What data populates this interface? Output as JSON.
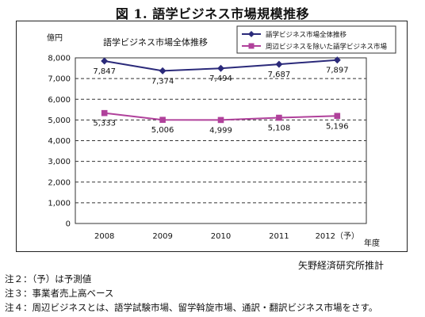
{
  "figure": {
    "title": "図 1. 語学ビジネス市場規模推移",
    "source": "矢野経済研究所推計",
    "notes": [
      "注２：（予）は予測値",
      "注３：事業者売上高ベース",
      "注４：周辺ビジネスとは、語学試験市場、留学斡旋市場、通訳・翻訳ビジネス市場をさす。"
    ]
  },
  "chart_data": {
    "type": "line",
    "title": "語学ビジネス市場全体推移",
    "ylabel": "億円",
    "xlabel": "年度",
    "categories": [
      "2008",
      "2009",
      "2010",
      "2011",
      "2012（予）"
    ],
    "ylim": [
      0,
      8000
    ],
    "yticks": [
      0,
      1000,
      2000,
      3000,
      4000,
      5000,
      6000,
      7000,
      8000
    ],
    "ytick_labels": [
      "0",
      "1,000",
      "2,000",
      "3,000",
      "4,000",
      "5,000",
      "6,000",
      "7,000",
      "8,000"
    ],
    "grid": "horizontal dashed",
    "legend_position": "top-right",
    "series": [
      {
        "name": "語学ビジネス市場全体推移",
        "values": [
          7847,
          7374,
          7494,
          7687,
          7897
        ],
        "labels": [
          "7,847",
          "7,374",
          "7,494",
          "7,687",
          "7,897"
        ],
        "color": "#2b2a7a",
        "marker": "diamond"
      },
      {
        "name": "周辺ビジネスを除いた語学ビジネス市場",
        "values": [
          5333,
          5006,
          4999,
          5108,
          5196
        ],
        "labels": [
          "5,333",
          "5,006",
          "4,999",
          "5,108",
          "5,196"
        ],
        "color": "#b0419b",
        "marker": "square"
      }
    ]
  }
}
